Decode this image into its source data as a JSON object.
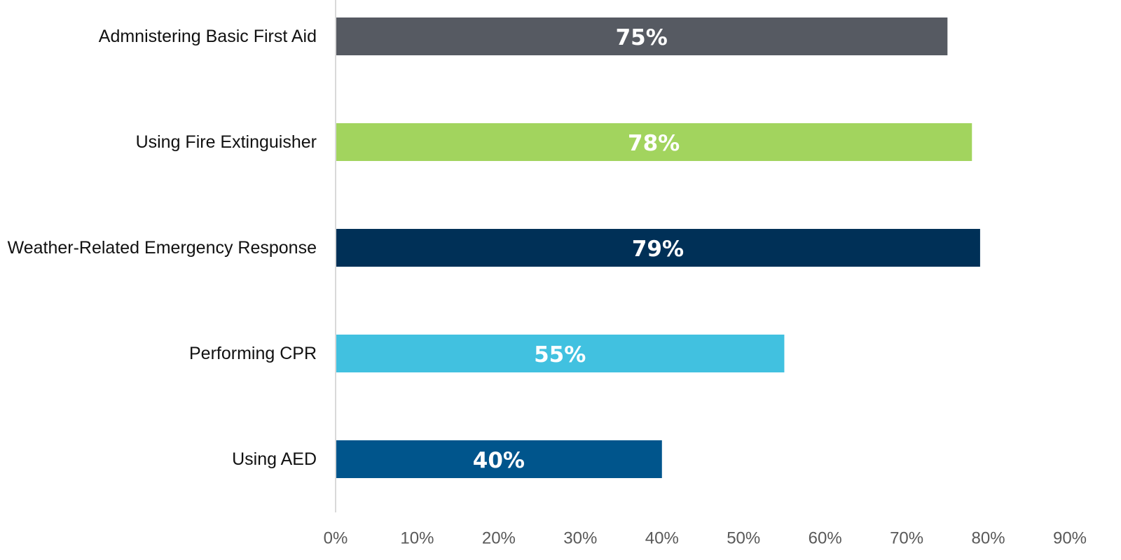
{
  "chart_data": {
    "type": "bar",
    "orientation": "horizontal",
    "title": "",
    "xlabel": "",
    "ylabel": "",
    "categories": [
      "Admnistering Basic First Aid",
      "Using Fire Extinguisher",
      "Weather-Related Emergency Response",
      "Performing CPR",
      "Using AED"
    ],
    "values": [
      75,
      78,
      79,
      55,
      40
    ],
    "data_labels": [
      "75%",
      "78%",
      "79%",
      "55%",
      "40%"
    ],
    "bar_colors": [
      "#565a62",
      "#a2d45e",
      "#003057",
      "#41c1e0",
      "#00558c"
    ],
    "x_ticks": [
      "0%",
      "10%",
      "20%",
      "30%",
      "40%",
      "50%",
      "60%",
      "70%",
      "80%",
      "90%"
    ],
    "xlim": [
      0,
      90
    ],
    "grid": false,
    "legend": "none"
  }
}
